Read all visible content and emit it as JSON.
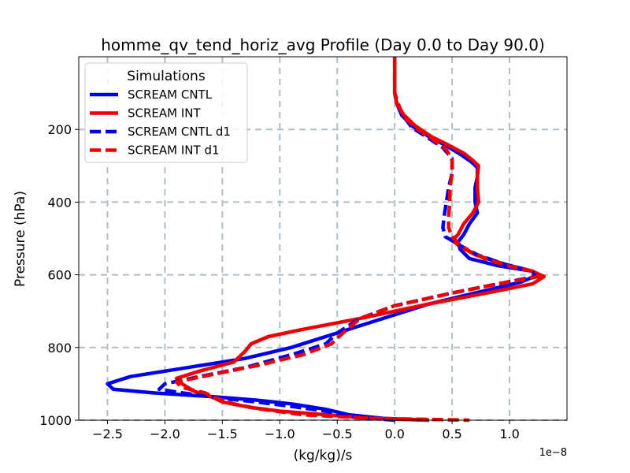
{
  "chart_data": {
    "type": "line",
    "title": "homme_qv_tend_horiz_avg Profile (Day 0.0 to Day 90.0)",
    "xlabel": "(kg/kg)/s",
    "ylabel": "Pressure (hPa)",
    "x_offset_label": "1e−8",
    "xlim": [
      -2.75,
      1.5
    ],
    "ylim": [
      1000,
      0
    ],
    "xticks": [
      -2.5,
      -2.0,
      -1.5,
      -1.0,
      -0.5,
      0.0,
      0.5,
      1.0
    ],
    "xtick_labels": [
      "−2.5",
      "−2.0",
      "−1.5",
      "−1.0",
      "−0.5",
      "0.0",
      "0.5",
      "1.0"
    ],
    "yticks": [
      200,
      400,
      600,
      800,
      1000
    ],
    "ytick_labels": [
      "200",
      "400",
      "600",
      "800",
      "1000"
    ],
    "grid": true,
    "legend": {
      "title": "Simulations",
      "placement": "upper-left"
    },
    "series": [
      {
        "name": "SCREAM CNTL",
        "color": "#0000ee",
        "style": "solid",
        "points": [
          [
            0.0,
            0
          ],
          [
            0.0,
            50
          ],
          [
            0.0,
            100
          ],
          [
            0.02,
            130
          ],
          [
            0.06,
            160
          ],
          [
            0.15,
            190
          ],
          [
            0.3,
            220
          ],
          [
            0.45,
            245
          ],
          [
            0.58,
            270
          ],
          [
            0.67,
            290
          ],
          [
            0.72,
            305
          ],
          [
            0.72,
            330
          ],
          [
            0.7,
            360
          ],
          [
            0.7,
            400
          ],
          [
            0.72,
            430
          ],
          [
            0.65,
            460
          ],
          [
            0.6,
            490
          ],
          [
            0.55,
            510
          ],
          [
            0.57,
            530
          ],
          [
            0.65,
            555
          ],
          [
            0.9,
            575
          ],
          [
            1.2,
            590
          ],
          [
            1.25,
            600
          ],
          [
            1.1,
            620
          ],
          [
            0.7,
            650
          ],
          [
            0.3,
            680
          ],
          [
            -0.1,
            720
          ],
          [
            -0.5,
            760
          ],
          [
            -0.9,
            800
          ],
          [
            -1.3,
            830
          ],
          [
            -1.8,
            855
          ],
          [
            -2.3,
            880
          ],
          [
            -2.5,
            900
          ],
          [
            -2.45,
            915
          ],
          [
            -2.1,
            925
          ],
          [
            -1.6,
            935
          ],
          [
            -1.2,
            945
          ],
          [
            -0.9,
            955
          ],
          [
            -0.6,
            970
          ],
          [
            -0.4,
            985
          ],
          [
            -0.1,
            995
          ],
          [
            0.3,
            1000
          ]
        ]
      },
      {
        "name": "SCREAM INT",
        "color": "#ee0000",
        "style": "solid",
        "points": [
          [
            0.0,
            0
          ],
          [
            0.0,
            50
          ],
          [
            0.0,
            100
          ],
          [
            0.02,
            130
          ],
          [
            0.08,
            160
          ],
          [
            0.18,
            190
          ],
          [
            0.32,
            220
          ],
          [
            0.45,
            240
          ],
          [
            0.6,
            265
          ],
          [
            0.68,
            285
          ],
          [
            0.73,
            300
          ],
          [
            0.72,
            330
          ],
          [
            0.72,
            360
          ],
          [
            0.73,
            400
          ],
          [
            0.68,
            430
          ],
          [
            0.6,
            460
          ],
          [
            0.55,
            490
          ],
          [
            0.5,
            505
          ],
          [
            0.56,
            520
          ],
          [
            0.7,
            545
          ],
          [
            0.95,
            570
          ],
          [
            1.2,
            590
          ],
          [
            1.3,
            605
          ],
          [
            1.2,
            625
          ],
          [
            0.8,
            650
          ],
          [
            0.3,
            680
          ],
          [
            -0.3,
            720
          ],
          [
            -0.8,
            750
          ],
          [
            -1.1,
            770
          ],
          [
            -1.25,
            790
          ],
          [
            -1.3,
            810
          ],
          [
            -1.4,
            840
          ],
          [
            -1.7,
            865
          ],
          [
            -1.9,
            885
          ],
          [
            -1.85,
            900
          ],
          [
            -1.75,
            920
          ],
          [
            -1.6,
            935
          ],
          [
            -1.5,
            950
          ],
          [
            -1.25,
            965
          ],
          [
            -1.0,
            975
          ],
          [
            -0.6,
            985
          ],
          [
            -0.2,
            995
          ],
          [
            0.3,
            1000
          ]
        ]
      },
      {
        "name": "SCREAM CNTL d1",
        "color": "#0000ee",
        "style": "dashed",
        "points": [
          [
            0.0,
            0
          ],
          [
            0.0,
            50
          ],
          [
            0.0,
            100
          ],
          [
            0.03,
            130
          ],
          [
            0.07,
            160
          ],
          [
            0.15,
            195
          ],
          [
            0.3,
            225
          ],
          [
            0.42,
            250
          ],
          [
            0.5,
            280
          ],
          [
            0.5,
            320
          ],
          [
            0.47,
            360
          ],
          [
            0.45,
            400
          ],
          [
            0.43,
            440
          ],
          [
            0.42,
            470
          ],
          [
            0.44,
            495
          ],
          [
            0.52,
            510
          ],
          [
            0.6,
            525
          ],
          [
            0.72,
            545
          ],
          [
            0.95,
            570
          ],
          [
            1.2,
            590
          ],
          [
            1.22,
            605
          ],
          [
            0.9,
            625
          ],
          [
            0.5,
            650
          ],
          [
            0.0,
            685
          ],
          [
            -0.3,
            720
          ],
          [
            -0.5,
            760
          ],
          [
            -0.6,
            790
          ],
          [
            -0.9,
            820
          ],
          [
            -1.3,
            855
          ],
          [
            -1.7,
            880
          ],
          [
            -2.0,
            900
          ],
          [
            -2.05,
            915
          ],
          [
            -1.85,
            925
          ],
          [
            -1.5,
            940
          ],
          [
            -1.2,
            950
          ],
          [
            -0.9,
            962
          ],
          [
            -0.6,
            975
          ],
          [
            -0.4,
            990
          ],
          [
            0.0,
            1000
          ]
        ]
      },
      {
        "name": "SCREAM INT d1",
        "color": "#ee0000",
        "style": "dashed",
        "points": [
          [
            0.0,
            0
          ],
          [
            0.0,
            50
          ],
          [
            0.0,
            100
          ],
          [
            0.03,
            130
          ],
          [
            0.08,
            165
          ],
          [
            0.18,
            195
          ],
          [
            0.32,
            225
          ],
          [
            0.45,
            255
          ],
          [
            0.5,
            285
          ],
          [
            0.5,
            320
          ],
          [
            0.48,
            360
          ],
          [
            0.48,
            400
          ],
          [
            0.47,
            440
          ],
          [
            0.47,
            470
          ],
          [
            0.5,
            495
          ],
          [
            0.56,
            515
          ],
          [
            0.65,
            535
          ],
          [
            0.78,
            555
          ],
          [
            0.98,
            575
          ],
          [
            1.2,
            590
          ],
          [
            1.25,
            605
          ],
          [
            0.9,
            625
          ],
          [
            0.5,
            650
          ],
          [
            0.0,
            685
          ],
          [
            -0.3,
            720
          ],
          [
            -0.45,
            760
          ],
          [
            -0.55,
            790
          ],
          [
            -0.8,
            820
          ],
          [
            -1.2,
            850
          ],
          [
            -1.6,
            875
          ],
          [
            -1.9,
            895
          ],
          [
            -1.85,
            910
          ],
          [
            -1.65,
            925
          ],
          [
            -1.55,
            940
          ],
          [
            -1.4,
            955
          ],
          [
            -1.2,
            968
          ],
          [
            -0.8,
            985
          ],
          [
            -0.2,
            995
          ],
          [
            0.65,
            1000
          ]
        ]
      }
    ]
  }
}
